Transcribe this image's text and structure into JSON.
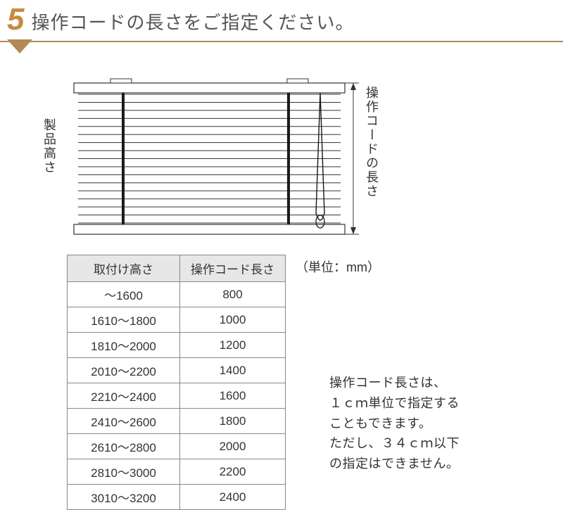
{
  "step": {
    "number": "5",
    "title": "操作コードの長さをご指定ください。"
  },
  "diagram": {
    "leftLabel": "製品高さ",
    "rightLabel": "操作コードの長さ",
    "blind": {
      "outerWidth": 385,
      "outerHeight": 215,
      "slatCount": 17,
      "ladderPositions": [
        70,
        305
      ],
      "ladderWidth": 4,
      "railColor": "#ffffff",
      "railStroke": "#333333",
      "slatColor": "#333333",
      "ladderColor": "#1a1a1a",
      "cordColor": "#1a1a1a"
    }
  },
  "table": {
    "unitLabel": "（単位：mm）",
    "columns": [
      "取付け高さ",
      "操作コード長さ"
    ],
    "rows": [
      [
        "～1600",
        "800"
      ],
      [
        "1610～1800",
        "1000"
      ],
      [
        "1810～2000",
        "1200"
      ],
      [
        "2010～2200",
        "1400"
      ],
      [
        "2210～2400",
        "1600"
      ],
      [
        "2410～2600",
        "1800"
      ],
      [
        "2610～2800",
        "2000"
      ],
      [
        "2810～3000",
        "2200"
      ],
      [
        "3010～3200",
        "2400"
      ]
    ]
  },
  "note": {
    "lines": [
      "操作コード長さは、",
      "１ｃｍ単位で指定する",
      "こともできます。",
      "ただし、３４ｃｍ以下",
      "の指定はできません。"
    ]
  },
  "colors": {
    "accent": "#c88a3d",
    "rule": "#b38a55",
    "headerBg": "#e7e7e7",
    "border": "#888888",
    "text": "#333333"
  }
}
